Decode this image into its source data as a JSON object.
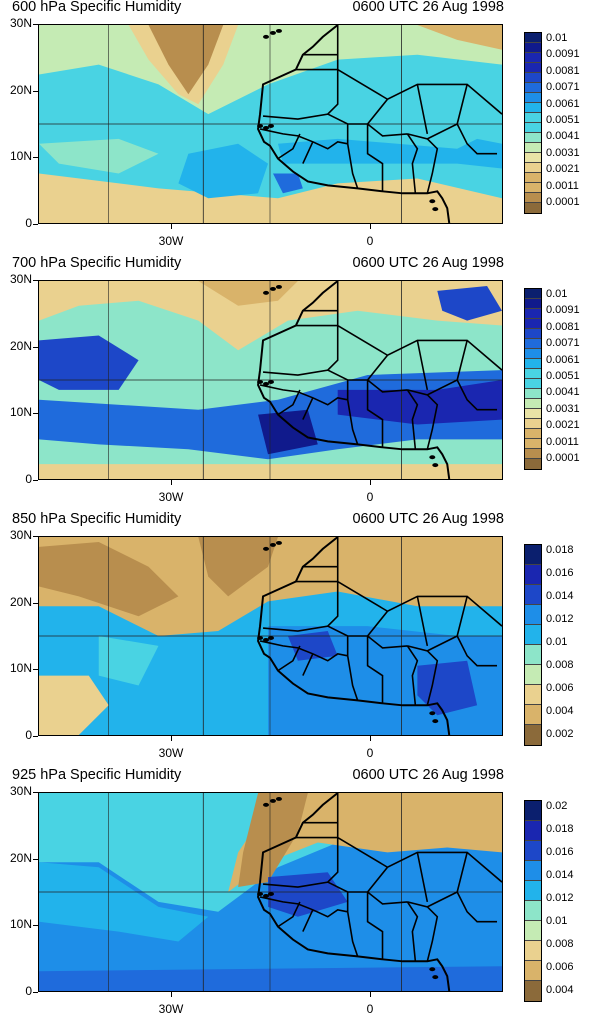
{
  "colors": {
    "low": "#8b6a3a",
    "mid": "#3fd3e0",
    "high": "#0a1d6e",
    "ramp": [
      "#8b6a3a",
      "#b88e4e",
      "#d9b36a",
      "#ead18f",
      "#e9e3a6",
      "#c5ebb4",
      "#8de5c9",
      "#49d3e3",
      "#22b3eb",
      "#1e8ee8",
      "#1f6bdc",
      "#1d47c8",
      "#1a26b0",
      "#101a8c",
      "#0b1f6e"
    ]
  },
  "panels": [
    {
      "title": "600 hPa Specific Humidity",
      "time": "0600 UTC 26 Aug 1998",
      "y_labels": [
        "30N",
        "20N",
        "10N",
        "0"
      ],
      "x_labels": [
        "30W",
        "0"
      ],
      "cbar_labels": [
        "0.01",
        "0.0091",
        "0.0081",
        "0.0071",
        "0.0061",
        "0.0051",
        "0.0041",
        "0.0031",
        "0.0021",
        "0.0011",
        "0.0001"
      ]
    },
    {
      "title": "700 hPa Specific Humidity",
      "time": "0600 UTC 26 Aug 1998",
      "y_labels": [
        "30N",
        "20N",
        "10N",
        "0"
      ],
      "x_labels": [
        "30W",
        "0"
      ],
      "cbar_labels": [
        "0.01",
        "0.0091",
        "0.0081",
        "0.0071",
        "0.0061",
        "0.0051",
        "0.0041",
        "0.0031",
        "0.0021",
        "0.0011",
        "0.0001"
      ]
    },
    {
      "title": "850 hPa Specific Humidity",
      "time": "0600 UTC 26 Aug 1998",
      "y_labels": [
        "30N",
        "20N",
        "10N",
        "0"
      ],
      "x_labels": [
        "30W",
        "0"
      ],
      "cbar_labels": [
        "0.018",
        "0.016",
        "0.014",
        "0.012",
        "0.01",
        "0.008",
        "0.006",
        "0.004",
        "0.002"
      ]
    },
    {
      "title": "925 hPa Specific Humidity",
      "time": "0600 UTC 26 Aug 1998",
      "y_labels": [
        "30N",
        "20N",
        "10N",
        "0"
      ],
      "x_labels": [
        "30W",
        "0"
      ],
      "cbar_labels": [
        "0.02",
        "0.018",
        "0.016",
        "0.014",
        "0.012",
        "0.01",
        "0.008",
        "0.006",
        "0.004"
      ]
    }
  ]
}
